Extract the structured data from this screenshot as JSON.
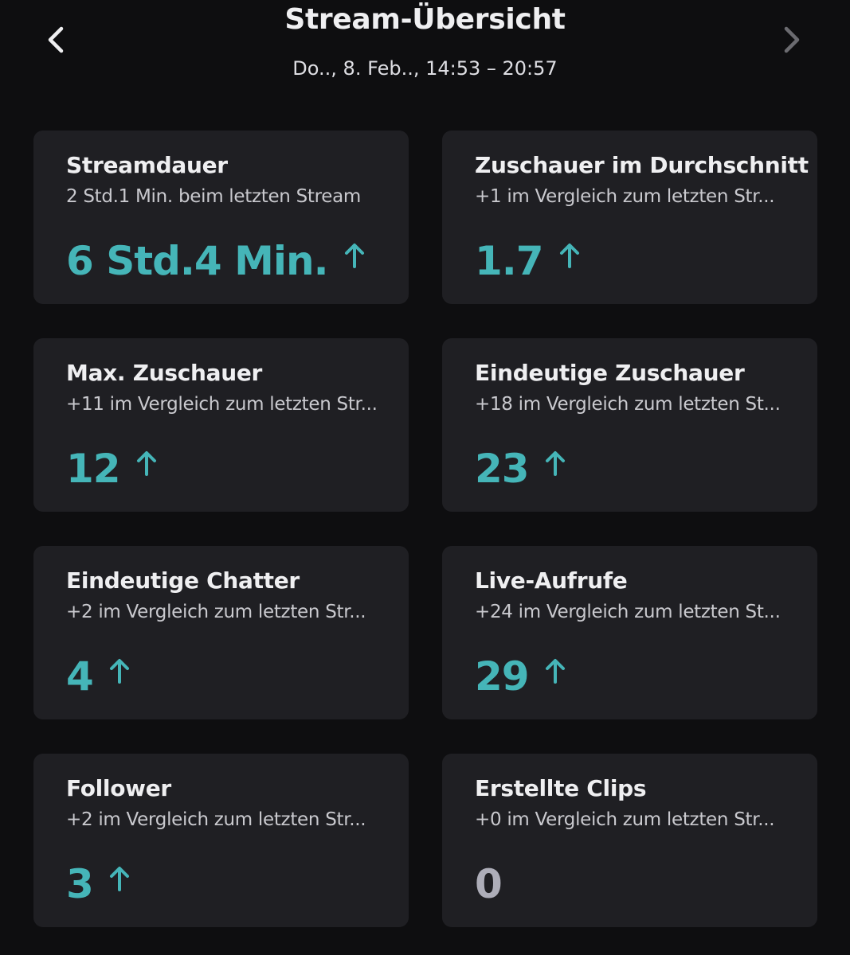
{
  "header": {
    "title": "Stream-Übersicht",
    "subtitle": "Do.., 8. Feb.., 14:53 – 20:57",
    "prev_icon": "chevron-left-icon",
    "next_icon": "chevron-right-icon"
  },
  "colors": {
    "accent": "#45b5b8",
    "card_bg": "#1f1f23",
    "page_bg": "#0e0e10",
    "neutral_value": "#adadb8"
  },
  "cards": [
    {
      "title": "Streamdauer",
      "subtitle": "2 Std.1 Min. beim letzten Stream",
      "value": "6 Std.4 Min.",
      "trend": "up"
    },
    {
      "title": "Zuschauer im Durchschnitt",
      "subtitle": "+1 im Vergleich zum letzten Str...",
      "value": "1.7",
      "trend": "up"
    },
    {
      "title": "Max. Zuschauer",
      "subtitle": "+11 im Vergleich zum letzten Str...",
      "value": "12",
      "trend": "up"
    },
    {
      "title": "Eindeutige Zuschauer",
      "subtitle": "+18 im Vergleich zum letzten St...",
      "value": "23",
      "trend": "up"
    },
    {
      "title": "Eindeutige Chatter",
      "subtitle": "+2 im Vergleich zum letzten Str...",
      "value": "4",
      "trend": "up"
    },
    {
      "title": "Live-Aufrufe",
      "subtitle": "+24 im Vergleich zum letzten St...",
      "value": "29",
      "trend": "up"
    },
    {
      "title": "Follower",
      "subtitle": "+2 im Vergleich zum letzten Str...",
      "value": "3",
      "trend": "up"
    },
    {
      "title": "Erstellte Clips",
      "subtitle": "+0 im Vergleich zum letzten Str...",
      "value": "0",
      "trend": "none"
    }
  ]
}
